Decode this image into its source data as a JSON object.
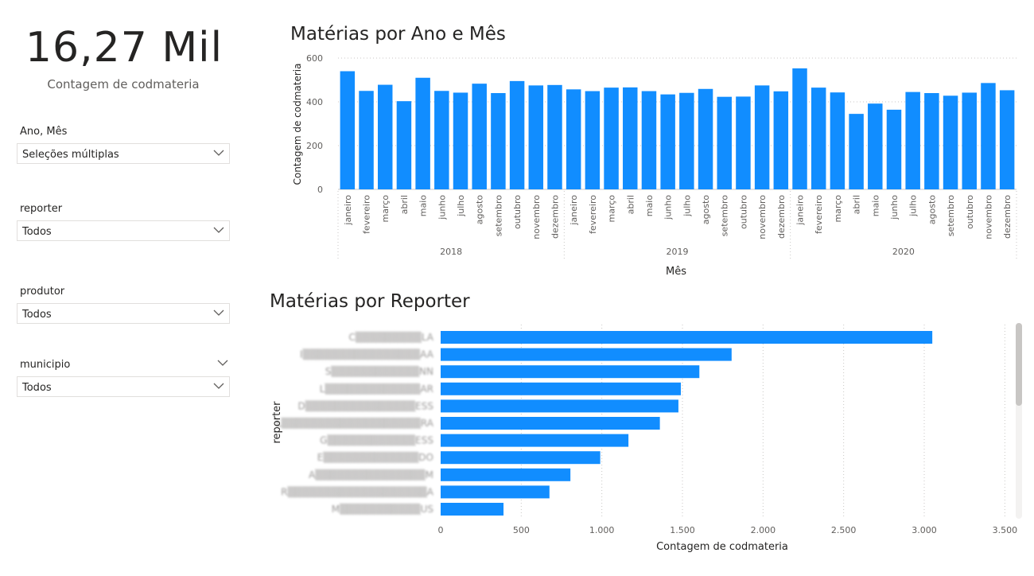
{
  "kpi": {
    "value": "16,27 Mil",
    "label": "Contagem de codmateria"
  },
  "slicers": [
    {
      "title": "Ano, Mês",
      "value": "Seleções múltiplas",
      "has_header_chevron": false
    },
    {
      "title": "reporter",
      "value": "Todos",
      "has_header_chevron": false
    },
    {
      "title": "produtor",
      "value": "Todos",
      "has_header_chevron": false
    },
    {
      "title": "municipio",
      "value": "Todos",
      "has_header_chevron": true
    }
  ],
  "colors": {
    "bar": "#118dff",
    "text": "#252423",
    "muted": "#605e5c",
    "grid": "#e6e6e6"
  },
  "chart_data": [
    {
      "type": "bar",
      "title": "Matérias por Ano e Mês",
      "xlabel": "Mês",
      "ylabel": "Contagem de codmateria",
      "ylim": [
        0,
        600
      ],
      "yticks": [
        "0",
        "200",
        "400",
        "600"
      ],
      "grid": true,
      "years": [
        "2018",
        "2019",
        "2020"
      ],
      "categories": [
        "janeiro",
        "fevereiro",
        "março",
        "abril",
        "maio",
        "junho",
        "julho",
        "agosto",
        "setembro",
        "outubro",
        "novembro",
        "dezembro"
      ],
      "values": [
        [
          540,
          450,
          478,
          403,
          510,
          450,
          442,
          483,
          440,
          495,
          475,
          477
        ],
        [
          457,
          449,
          465,
          466,
          449,
          434,
          441,
          459,
          423,
          424,
          475,
          448
        ],
        [
          553,
          465,
          443,
          345,
          392,
          364,
          445,
          440,
          428,
          442,
          486,
          453
        ]
      ]
    },
    {
      "type": "bar",
      "orientation": "horizontal",
      "title": "Matérias por Reporter",
      "xlabel": "Contagem de codmateria",
      "ylabel": "reporter",
      "xlim": [
        0,
        3500
      ],
      "xticks": [
        "0",
        "500",
        "1.000",
        "1.500",
        "2.000",
        "2.500",
        "3.000",
        "3.500"
      ],
      "grid": true,
      "categories": [
        "C▒▒▒▒▒▒▒▒▒LA",
        "I▒▒▒▒▒▒▒▒▒▒▒▒▒▒▒▒AA",
        "S▒▒▒▒▒▒▒▒▒▒▒▒NN",
        "L▒▒▒▒▒▒▒▒▒▒▒▒▒AR",
        "D▒▒▒▒▒▒▒▒▒▒▒▒▒▒▒ESS",
        "L▒▒▒▒▒▒▒▒▒▒▒▒▒▒▒▒▒▒▒RA",
        "G▒▒▒▒▒▒▒▒▒▒▒▒ESS",
        "E▒▒▒▒▒▒▒▒▒▒▒▒▒DO",
        "A▒▒▒▒▒▒▒▒▒▒▒▒▒▒▒M",
        "R▒▒▒▒▒▒▒▒▒▒▒▒▒▒▒▒▒▒▒A",
        "M▒▒▒▒▒▒▒▒▒▒▒US"
      ],
      "values": [
        3050,
        1805,
        1605,
        1490,
        1475,
        1360,
        1165,
        990,
        805,
        675,
        390
      ]
    }
  ]
}
